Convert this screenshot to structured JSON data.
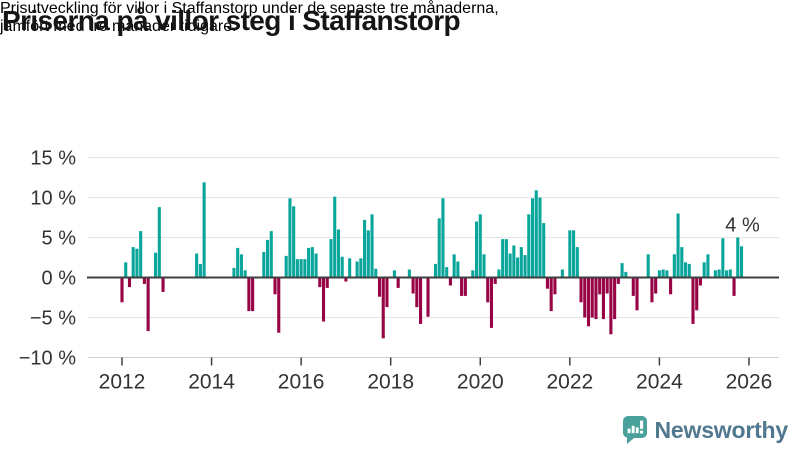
{
  "header": {
    "title": "Priserna på villor steg i Staffanstorp",
    "subtitle_lines": [
      "Prisutveckling för villor i Staffanstorp under de senaste tre månaderna,",
      "jämfört med tre månader tidigare."
    ]
  },
  "footer": {
    "logo_text": "Newsworthy"
  },
  "colors": {
    "positive_bar": "#0ba69b",
    "negative_bar": "#970345",
    "zero_line": "#3f3f3f",
    "gridline": "#e4e4e4",
    "axis_line": "#d0d0d0",
    "tick_text": "#333333",
    "annotation_text": "#333333",
    "logo_icon": "#4aa09b",
    "logo_text": "#50788e"
  },
  "chart_data": {
    "type": "bar",
    "title": "Priserna på villor steg i Staffanstorp",
    "xlabel": "",
    "ylabel": "",
    "unit": "%",
    "frequency": "monthly",
    "start": "2012-01",
    "ylim": [
      -10,
      15
    ],
    "grid": true,
    "y_ticks": [
      {
        "value": 15,
        "label": "15 %"
      },
      {
        "value": 10,
        "label": "10 %"
      },
      {
        "value": 5,
        "label": "5 %"
      },
      {
        "value": 0,
        "label": "0 %"
      },
      {
        "value": -5,
        "label": "−5 %"
      },
      {
        "value": -10,
        "label": "−10 %"
      }
    ],
    "x_ticks": [
      {
        "year": 2012,
        "label": "2012"
      },
      {
        "year": 2014,
        "label": "2014"
      },
      {
        "year": 2016,
        "label": "2016"
      },
      {
        "year": 2018,
        "label": "2018"
      },
      {
        "year": 2020,
        "label": "2020"
      },
      {
        "year": 2022,
        "label": "2022"
      },
      {
        "year": 2024,
        "label": "2024"
      },
      {
        "year": 2026,
        "label": "2026"
      }
    ],
    "annotation": {
      "text": "4 %",
      "month_index": 166,
      "value": 4
    },
    "values": [
      -3.1,
      1.9,
      -1.2,
      3.8,
      3.6,
      5.8,
      -0.8,
      -6.7,
      null,
      3.1,
      8.8,
      -1.8,
      null,
      null,
      null,
      null,
      null,
      null,
      null,
      null,
      3.0,
      1.7,
      11.9,
      null,
      null,
      null,
      null,
      null,
      null,
      null,
      1.2,
      3.7,
      2.9,
      0.9,
      -4.2,
      -4.2,
      null,
      null,
      3.2,
      4.7,
      5.8,
      -2.1,
      -6.9,
      null,
      2.7,
      9.9,
      8.9,
      2.3,
      2.3,
      2.3,
      3.7,
      3.8,
      3.0,
      -1.2,
      -5.5,
      -1.3,
      4.8,
      10.1,
      6.0,
      2.6,
      -0.5,
      2.4,
      null,
      2.0,
      2.4,
      7.2,
      5.9,
      7.9,
      1.1,
      -2.4,
      -7.6,
      -3.7,
      null,
      0.9,
      -1.3,
      null,
      null,
      1.0,
      -2.0,
      -3.7,
      -5.8,
      null,
      -4.9,
      null,
      1.7,
      7.4,
      9.9,
      1.3,
      -1.0,
      2.9,
      2.0,
      -2.3,
      -2.3,
      null,
      0.9,
      7.0,
      7.9,
      2.9,
      -3.1,
      -6.3,
      -0.8,
      1.0,
      4.8,
      4.8,
      3.0,
      4.0,
      2.5,
      3.8,
      2.8,
      7.9,
      9.9,
      10.9,
      10.0,
      6.8,
      -1.4,
      -4.2,
      -2.1,
      null,
      1.0,
      null,
      5.9,
      5.9,
      3.8,
      -3.1,
      -5.0,
      -6.1,
      -5.0,
      -5.2,
      -2.1,
      -5.2,
      -2.0,
      -7.1,
      -5.2,
      -0.8,
      1.8,
      0.7,
      null,
      -2.3,
      -4.1,
      null,
      null,
      2.9,
      -3.1,
      -2.0,
      0.9,
      1.0,
      0.9,
      -2.1,
      2.9,
      8.0,
      3.8,
      1.9,
      1.7,
      -5.8,
      -4.1,
      -1.0,
      1.9,
      2.9,
      null,
      0.9,
      1.0,
      4.9,
      0.9,
      1.0,
      -2.3,
      5.0,
      3.9
    ]
  }
}
